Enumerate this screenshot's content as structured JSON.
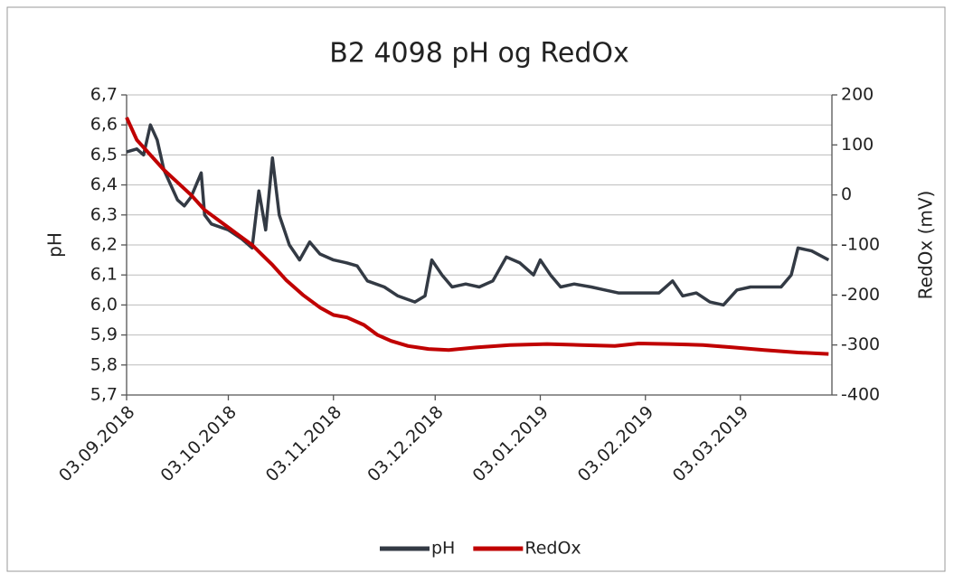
{
  "chart_data": {
    "type": "line",
    "title": "B2 4098 pH og RedOx",
    "ylabel": "pH",
    "y2label": "RedOx (mV)",
    "xlim": [
      "2018-09-03",
      "2019-03-30"
    ],
    "xticks": [
      {
        "value": "2018-09-03",
        "label": "03.09.2018"
      },
      {
        "value": "2018-10-03",
        "label": "03.10.2018"
      },
      {
        "value": "2018-11-03",
        "label": "03.11.2018"
      },
      {
        "value": "2018-12-03",
        "label": "03.12.2018"
      },
      {
        "value": "2019-01-03",
        "label": "03.01.2019"
      },
      {
        "value": "2019-02-03",
        "label": "03.02.2019"
      },
      {
        "value": "2019-03-03",
        "label": "03.03.2019"
      }
    ],
    "ylim": [
      5.7,
      6.7
    ],
    "yticks": [
      {
        "value": 5.7,
        "label": "5,7"
      },
      {
        "value": 5.8,
        "label": "5,8"
      },
      {
        "value": 5.9,
        "label": "5,9"
      },
      {
        "value": 6.0,
        "label": "6,0"
      },
      {
        "value": 6.1,
        "label": "6,1"
      },
      {
        "value": 6.2,
        "label": "6,2"
      },
      {
        "value": 6.3,
        "label": "6,3"
      },
      {
        "value": 6.4,
        "label": "6,4"
      },
      {
        "value": 6.5,
        "label": "6,5"
      },
      {
        "value": 6.6,
        "label": "6,6"
      },
      {
        "value": 6.7,
        "label": "6,7"
      }
    ],
    "y2lim": [
      -400,
      200
    ],
    "y2ticks": [
      -400,
      -300,
      -200,
      -100,
      0,
      100,
      200
    ],
    "grid": true,
    "legend": "bottom",
    "series": [
      {
        "name": "pH",
        "color": "#333a44",
        "x": [
          "2018-09-03",
          "2018-09-06",
          "2018-09-08",
          "2018-09-10",
          "2018-09-12",
          "2018-09-14",
          "2018-09-16",
          "2018-09-18",
          "2018-09-20",
          "2018-09-22",
          "2018-09-25",
          "2018-09-26",
          "2018-09-28",
          "2018-10-03",
          "2018-10-07",
          "2018-10-10",
          "2018-10-12",
          "2018-10-14",
          "2018-10-16",
          "2018-10-18",
          "2018-10-21",
          "2018-10-24",
          "2018-10-27",
          "2018-10-30",
          "2018-11-03",
          "2018-11-07",
          "2018-11-10",
          "2018-11-13",
          "2018-11-18",
          "2018-11-22",
          "2018-11-27",
          "2018-11-30",
          "2018-12-02",
          "2018-12-05",
          "2018-12-08",
          "2018-12-12",
          "2018-12-16",
          "2018-12-20",
          "2018-12-24",
          "2018-12-28",
          "2019-01-01",
          "2019-01-03",
          "2019-01-06",
          "2019-01-09",
          "2019-01-13",
          "2019-01-18",
          "2019-01-22",
          "2019-01-26",
          "2019-01-30",
          "2019-02-03",
          "2019-02-07",
          "2019-02-11",
          "2019-02-14",
          "2019-02-18",
          "2019-02-22",
          "2019-02-26",
          "2019-03-02",
          "2019-03-06",
          "2019-03-10",
          "2019-03-15",
          "2019-03-18",
          "2019-03-20",
          "2019-03-24",
          "2019-03-29"
        ],
        "values": [
          6.51,
          6.52,
          6.5,
          6.6,
          6.55,
          6.45,
          6.4,
          6.35,
          6.33,
          6.36,
          6.44,
          6.3,
          6.27,
          6.25,
          6.22,
          6.19,
          6.38,
          6.25,
          6.49,
          6.3,
          6.2,
          6.15,
          6.21,
          6.17,
          6.15,
          6.14,
          6.13,
          6.08,
          6.06,
          6.03,
          6.01,
          6.03,
          6.15,
          6.1,
          6.06,
          6.07,
          6.06,
          6.08,
          6.16,
          6.14,
          6.1,
          6.15,
          6.1,
          6.06,
          6.07,
          6.06,
          6.05,
          6.04,
          6.04,
          6.04,
          6.04,
          6.08,
          6.03,
          6.04,
          6.01,
          6.0,
          6.05,
          6.06,
          6.06,
          6.06,
          6.1,
          6.19,
          6.18,
          6.15
        ]
      },
      {
        "name": "RedOx",
        "color": "#c00000",
        "axis": "y2",
        "x": [
          "2018-09-03",
          "2018-09-06",
          "2018-09-10",
          "2018-09-14",
          "2018-09-18",
          "2018-09-22",
          "2018-09-26",
          "2018-10-01",
          "2018-10-05",
          "2018-10-10",
          "2018-10-13",
          "2018-10-16",
          "2018-10-20",
          "2018-10-25",
          "2018-10-30",
          "2018-11-03",
          "2018-11-07",
          "2018-11-12",
          "2018-11-16",
          "2018-11-20",
          "2018-11-25",
          "2018-12-01",
          "2018-12-07",
          "2018-12-15",
          "2018-12-25",
          "2019-01-05",
          "2019-01-15",
          "2019-01-25",
          "2019-02-01",
          "2019-02-10",
          "2019-02-20",
          "2019-03-01",
          "2019-03-10",
          "2019-03-20",
          "2019-03-29"
        ],
        "values": [
          155,
          110,
          80,
          50,
          25,
          0,
          -30,
          -55,
          -75,
          -100,
          -120,
          -140,
          -170,
          -200,
          -225,
          -240,
          -245,
          -260,
          -280,
          -292,
          -302,
          -308,
          -310,
          -305,
          -300,
          -298,
          -300,
          -302,
          -297,
          -298,
          -300,
          -305,
          -310,
          -315,
          -318
        ]
      }
    ]
  }
}
